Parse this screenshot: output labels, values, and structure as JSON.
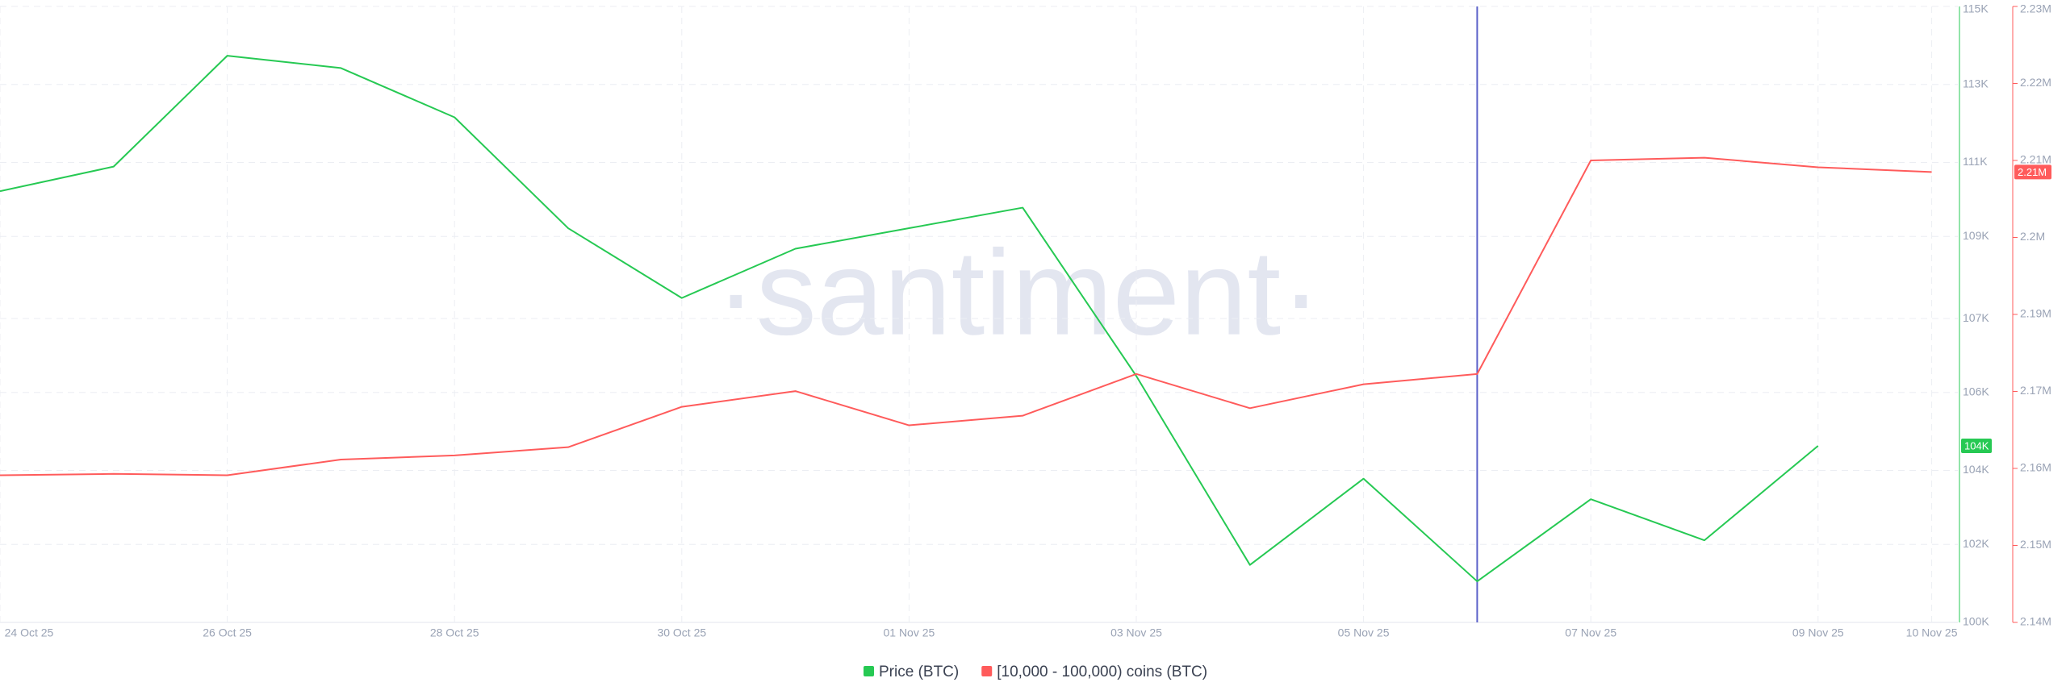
{
  "chart_data": {
    "type": "line",
    "watermark": "·santiment·",
    "categories": [
      "24 Oct 25",
      null,
      "26 Oct 25",
      null,
      "28 Oct 25",
      null,
      "30 Oct 25",
      null,
      "01 Nov 25",
      null,
      "03 Nov 25",
      null,
      "05 Nov 25",
      null,
      "07 Nov 25",
      null,
      "09 Nov 25",
      "10 Nov 25"
    ],
    "series": [
      {
        "name": "Price (BTC)",
        "color": "#26c953",
        "badge": "104K",
        "values": [
          110500,
          111100,
          113800,
          113500,
          112300,
          109600,
          107900,
          109100,
          109600,
          110100,
          106000,
          101400,
          103500,
          101000,
          103000,
          102000,
          104300,
          null
        ]
      },
      {
        "name": "[10,000 - 100,000) coins (BTC)",
        "color": "#ff5b5b",
        "axis": "y2",
        "badge": "2.21M",
        "values": [
          2161500,
          2161700,
          2161500,
          2163800,
          2164400,
          2165600,
          2171500,
          2173800,
          2168800,
          2170200,
          2176300,
          2171300,
          2174800,
          2176300,
          2207500,
          2207900,
          2206500,
          2205800
        ]
      }
    ],
    "ylim": [
      100000,
      115000
    ],
    "yticks": [
      {
        "value": 100000,
        "label": "100K"
      },
      {
        "value": 101900,
        "label": "102K"
      },
      {
        "value": 103700,
        "label": "104K"
      },
      {
        "value": 105600,
        "label": "106K"
      },
      {
        "value": 107400,
        "label": "107K"
      },
      {
        "value": 109400,
        "label": "109K"
      },
      {
        "value": 111200,
        "label": "111K"
      },
      {
        "value": 113100,
        "label": "113K"
      },
      {
        "value": 115000,
        "label": "115K"
      }
    ],
    "y2lim": [
      2140000,
      2230000
    ],
    "y2ticks": [
      {
        "value": 2140000,
        "label": "2.14M"
      },
      {
        "value": 2151250,
        "label": "2.15M"
      },
      {
        "value": 2162500,
        "label": "2.16M"
      },
      {
        "value": 2173750,
        "label": "2.17M"
      },
      {
        "value": 2185000,
        "label": "2.19M"
      },
      {
        "value": 2196250,
        "label": "2.2M"
      },
      {
        "value": 2207500,
        "label": "2.21M"
      },
      {
        "value": 2218750,
        "label": "2.22M"
      },
      {
        "value": 2230000,
        "label": "2.23M"
      }
    ],
    "highlight_index": 13,
    "highlight_color": "#5b61c9",
    "grid": true
  }
}
